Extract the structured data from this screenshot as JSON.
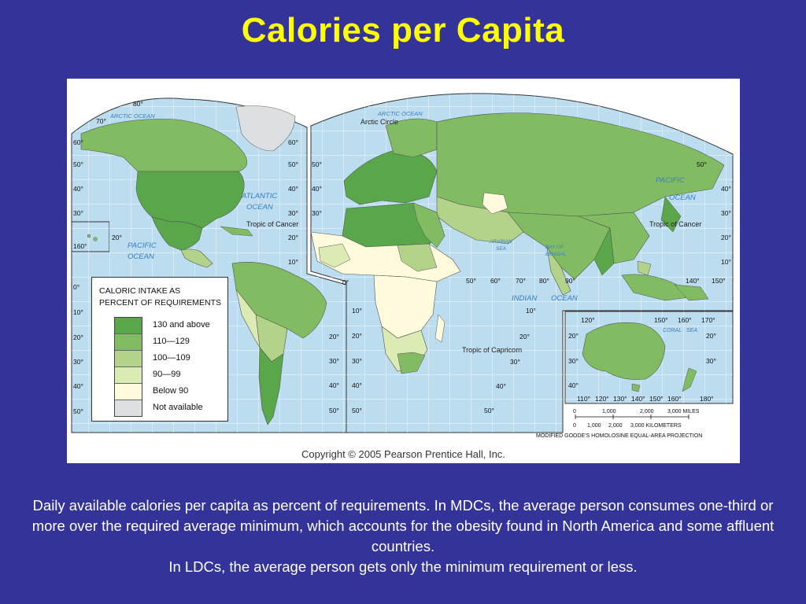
{
  "slide": {
    "title": "Calories per Capita",
    "caption_line1": "Daily available calories per capita as percent of requirements. In MDCs, the average person consumes one-third or more over the required average minimum, which accounts for the obesity found in North America and some affluent countries.",
    "caption_line2": "In LDCs, the average person gets only the minimum requirement or less."
  },
  "map": {
    "copyright": "Copyright © 2005 Pearson Prentice Hall, Inc.",
    "projection": "MODIFIED GOODE'S HOMOLOSINE EQUAL-AREA PROJECTION",
    "legend": {
      "title_line1": "CALORIC INTAKE AS",
      "title_line2": "PERCENT OF REQUIREMENTS",
      "items": [
        {
          "label": "130 and above",
          "color": "#5aa64a"
        },
        {
          "label": "110—129",
          "color": "#82bc62"
        },
        {
          "label": "100—109",
          "color": "#b4d38a"
        },
        {
          "label": "90—99",
          "color": "#dcebb4"
        },
        {
          "label": "Below 90",
          "color": "#fffbdc"
        },
        {
          "label": "Not available",
          "color": "#dde0e2"
        }
      ]
    },
    "labels": {
      "arctic_ocean_west": "ARCTIC OCEAN",
      "arctic_ocean_east": "ARCTIC OCEAN",
      "arctic_circle": "Arctic Circle",
      "atlantic_line1": "ATLANTIC",
      "atlantic_line2": "OCEAN",
      "pacific_west_line1": "PACIFIC",
      "pacific_west_line2": "OCEAN",
      "pacific_east_line1": "PACIFIC",
      "pacific_east_line2": "OCEAN",
      "indian": "INDIAN",
      "indian_ocean": "OCEAN",
      "tropic_cancer_west": "Tropic of Cancer",
      "tropic_cancer_east": "Tropic of Cancer",
      "tropic_capricorn": "Tropic of Capricorn",
      "arabian_line1": "ARABIAN",
      "arabian_line2": "SEA",
      "bengal_line1": "BAY OF",
      "bengal_line2": "BENGAL",
      "coral": "CORAL",
      "coral_sea": "SEA"
    },
    "scale": {
      "miles_ticks": [
        "0",
        "1,000",
        "2,000",
        "3,000 MILES"
      ],
      "km_ticks": [
        "0",
        "1,000",
        "2,000",
        "3,000 KILOMETERS"
      ]
    },
    "degree_labels": {
      "w80": "80°",
      "w70": "70°",
      "wl60": "60°",
      "wl50": "50°",
      "wl40": "40°",
      "wl30": "30°",
      "wl20": "20°",
      "wl160": "160°",
      "wl0": "0°",
      "wl10": "10°",
      "wl20s": "20°",
      "wl30s": "30°",
      "wl40s": "40°",
      "wl50s": "50°",
      "wr60": "60°",
      "wr50": "50°",
      "wr40": "40°",
      "wr30": "30°",
      "wr20": "20°",
      "wr10": "10°",
      "am20s": "20°",
      "am30s": "30°",
      "am40s": "40°",
      "am50s": "50°",
      "el50": "50°",
      "el40": "40°",
      "el30": "30°",
      "af0": "0°",
      "af10s": "10°",
      "af20s": "20°",
      "af30s": "30°",
      "af40s": "40°",
      "af50s": "50°",
      "io50": "50°",
      "io60": "60°",
      "io70": "70°",
      "io80": "80°",
      "io90": "90°",
      "io10s": "10°",
      "io20s": "20°",
      "io30s": "30°",
      "io40s": "40°",
      "io50s": "50°",
      "er50": "50°",
      "er40": "40°",
      "er30": "30°",
      "er20": "20°",
      "er10": "10°",
      "e140": "140°",
      "e150": "150°",
      "au120": "120°",
      "au150": "150°",
      "au160": "160°",
      "au170": "170°",
      "au20": "20°",
      "au30": "30°",
      "au40": "40°",
      "au20r": "20°",
      "au30r": "30°",
      "aub110": "110°",
      "aub120": "120°",
      "aub130": "130°",
      "aub140": "140°",
      "aub150": "150°",
      "aub160": "160°",
      "aub180": "180°"
    }
  }
}
